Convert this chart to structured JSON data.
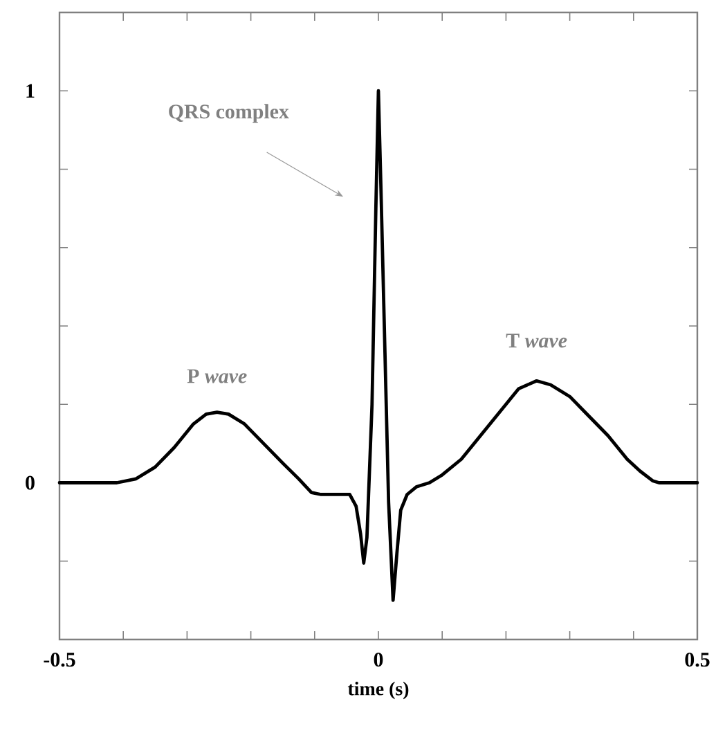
{
  "chart_data": {
    "type": "line",
    "xlabel": "time (s)",
    "x": [
      -0.5,
      -0.45,
      -0.41,
      -0.38,
      -0.35,
      -0.32,
      -0.29,
      -0.27,
      -0.253,
      -0.235,
      -0.21,
      -0.18,
      -0.15,
      -0.125,
      -0.105,
      -0.09,
      -0.045,
      -0.035,
      -0.028,
      -0.023,
      -0.018,
      -0.01,
      -0.004,
      0,
      0.004,
      0.01,
      0.016,
      0.023,
      0.029,
      0.035,
      0.045,
      0.06,
      0.08,
      0.1,
      0.13,
      0.16,
      0.19,
      0.22,
      0.248,
      0.27,
      0.3,
      0.33,
      0.36,
      0.39,
      0.41,
      0.43,
      0.44,
      0.5
    ],
    "values": [
      0,
      0,
      0,
      0.01,
      0.04,
      0.09,
      0.15,
      0.175,
      0.18,
      0.175,
      0.15,
      0.1,
      0.05,
      0.01,
      -0.025,
      -0.03,
      -0.03,
      -0.06,
      -0.13,
      -0.205,
      -0.14,
      0.2,
      0.7,
      1.0,
      0.75,
      0.35,
      -0.05,
      -0.3,
      -0.18,
      -0.07,
      -0.03,
      -0.01,
      0,
      0.02,
      0.06,
      0.12,
      0.18,
      0.24,
      0.26,
      0.25,
      0.22,
      0.17,
      0.12,
      0.06,
      0.03,
      0.005,
      0,
      0
    ],
    "color": "#000000",
    "line_style": "solid",
    "marker": "none",
    "xlim": [
      -0.5,
      0.5
    ],
    "xticks": [
      -0.5,
      {
        "value": -0.4,
        "label": null
      },
      {
        "value": -0.3,
        "label": null
      },
      {
        "value": -0.2,
        "label": null
      },
      {
        "value": -0.1,
        "label": null
      },
      0,
      {
        "value": 0.1,
        "label": null
      },
      {
        "value": 0.2,
        "label": null
      },
      {
        "value": 0.3,
        "label": null
      },
      {
        "value": 0.4,
        "label": null
      },
      0.5
    ],
    "ylim": [
      -0.4,
      1.2
    ],
    "yticks": [
      {
        "value": -0.4,
        "label": null
      },
      {
        "value": -0.2,
        "label": null
      },
      0,
      {
        "value": 0.2,
        "label": null
      },
      {
        "value": 0.4,
        "label": null
      },
      {
        "value": 0.6,
        "label": null
      },
      {
        "value": 0.8,
        "label": null
      },
      1,
      {
        "value": 1.2,
        "label": null
      }
    ],
    "annotations": [
      "QRS complex",
      {
        "text": "P *wave*",
        "x": -0.253,
        "y": 0.18
      },
      {
        "text": "T *wave*",
        "x": 0.248,
        "y": 0.26
      }
    ]
  }
}
